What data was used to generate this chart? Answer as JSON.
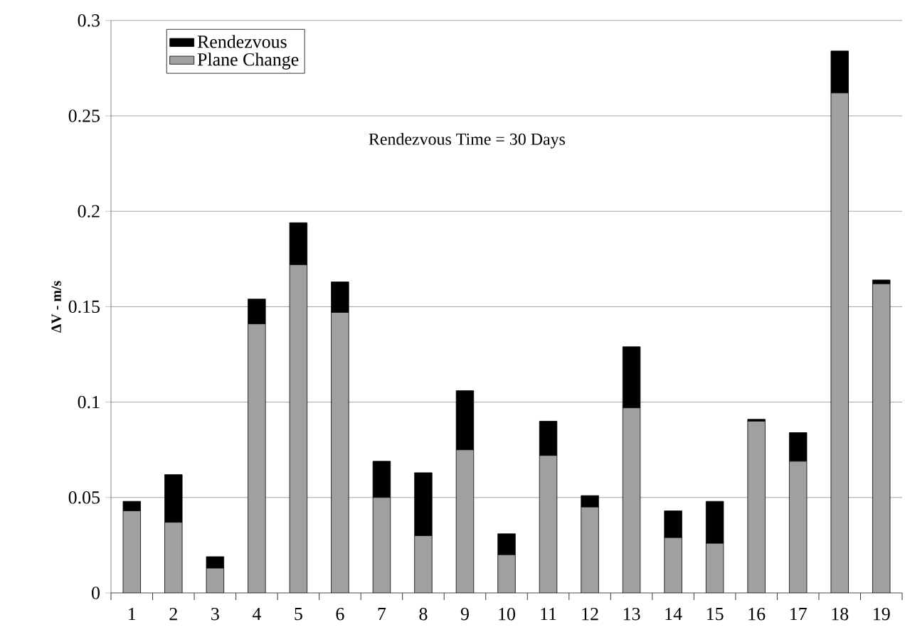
{
  "chart_data": {
    "type": "bar",
    "stacked": true,
    "ylabel": "ΔV - m/s",
    "categories": [
      "1",
      "2",
      "3",
      "4",
      "5",
      "6",
      "7",
      "8",
      "9",
      "10",
      "11",
      "12",
      "13",
      "14",
      "15",
      "16",
      "17",
      "18",
      "19"
    ],
    "series": [
      {
        "name": "Plane Change",
        "color": "#a0a0a0",
        "values": [
          0.043,
          0.037,
          0.013,
          0.141,
          0.172,
          0.147,
          0.05,
          0.03,
          0.075,
          0.02,
          0.072,
          0.045,
          0.097,
          0.029,
          0.026,
          0.09,
          0.069,
          0.262,
          0.162
        ]
      },
      {
        "name": "Rendezvous",
        "color": "#000000",
        "values": [
          0.005,
          0.025,
          0.006,
          0.013,
          0.022,
          0.016,
          0.019,
          0.033,
          0.031,
          0.011,
          0.018,
          0.006,
          0.032,
          0.014,
          0.022,
          0.001,
          0.015,
          0.022,
          0.002
        ]
      }
    ],
    "ylim": [
      0,
      0.3
    ],
    "yticks": [
      0,
      0.05,
      0.1,
      0.15,
      0.2,
      0.25,
      0.3
    ],
    "grid": "y",
    "legend": "top left",
    "annotations": [
      "Rendezvous Time  = 30 Days"
    ]
  }
}
